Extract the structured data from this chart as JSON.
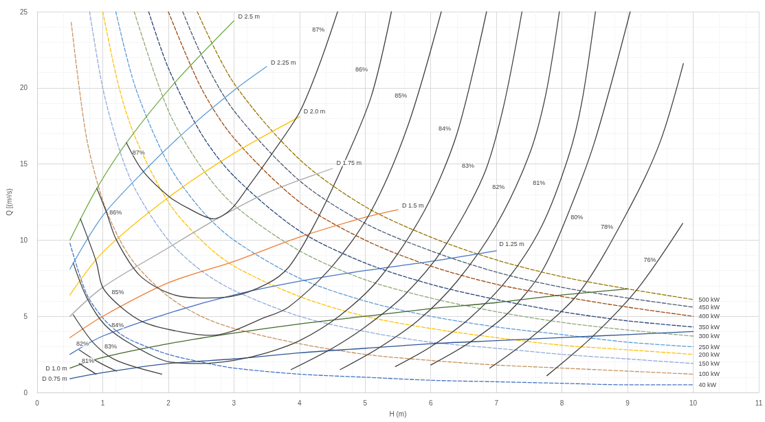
{
  "chart_data": {
    "type": "line",
    "xlabel": "H (m)",
    "ylabel": "Q [(m³/s)",
    "xlim": [
      0,
      11
    ],
    "xticks": [
      0,
      1,
      2,
      3,
      4,
      5,
      6,
      7,
      8,
      9,
      10,
      11
    ],
    "ylim": [
      0,
      25
    ],
    "yticks": [
      0,
      5,
      10,
      15,
      20,
      25
    ],
    "grid": true,
    "marker": "none",
    "line_style": "solid",
    "series": [
      {
        "name": "D 2.5 m",
        "color": "#70ad47",
        "x": [
          0.5,
          0.91,
          1.38,
          2.09,
          3
        ],
        "values": [
          10,
          13.4,
          16.5,
          20.3,
          24.4
        ]
      },
      {
        "name": "D 2.25 m",
        "color": "#5b9bd5",
        "x": [
          0.5,
          1,
          1.62,
          2.3,
          3.02,
          3.5
        ],
        "values": [
          8.1,
          11.6,
          14.5,
          17.3,
          19.9,
          21.4
        ]
      },
      {
        "name": "D 2.0 m",
        "color": "#ffc000",
        "x": [
          0.5,
          1,
          2,
          3,
          4
        ],
        "values": [
          6.4,
          9.2,
          12.8,
          15.7,
          18.1
        ]
      },
      {
        "name": "D 1.75 m",
        "color": "#a5a5a5",
        "x": [
          0.5,
          1,
          2,
          2.7,
          3.5,
          4.5
        ],
        "values": [
          5.0,
          6.9,
          9.5,
          11.3,
          13.1,
          14.7
        ]
      },
      {
        "name": "D 1.5 m",
        "color": "#ed7d31",
        "x": [
          0.5,
          1,
          2,
          3,
          4,
          5,
          5.5
        ],
        "values": [
          3.6,
          5.0,
          7.2,
          8.6,
          10.2,
          11.5,
          12.0
        ]
      },
      {
        "name": "D 1.25 m",
        "color": "#4472c4",
        "x": [
          0.5,
          1,
          2,
          3,
          4,
          5,
          6,
          7
        ],
        "values": [
          2.5,
          3.7,
          5.2,
          6.4,
          7.3,
          8.0,
          8.6,
          9.3
        ]
      },
      {
        "name": "D 1.0 m",
        "color": "#43682b",
        "x": [
          0.5,
          1,
          2,
          3,
          4,
          5,
          6,
          7,
          8,
          9
        ],
        "values": [
          1.6,
          2.3,
          3.2,
          3.9,
          4.5,
          5.0,
          5.5,
          5.9,
          6.4,
          6.8
        ]
      },
      {
        "name": "D 0.75 m",
        "color": "#2f5597",
        "x": [
          0.5,
          1,
          2,
          3,
          4,
          5,
          6,
          7,
          8,
          9,
          10
        ],
        "values": [
          0.9,
          1.3,
          1.9,
          2.2,
          2.6,
          2.9,
          3.2,
          3.4,
          3.6,
          3.8,
          4.0
        ]
      },
      {
        "name": "40 kW",
        "color": "#4472c4",
        "line_style": "dashed",
        "x": [
          0.5,
          0.75,
          1,
          1.25,
          1.5,
          2,
          2.5,
          3,
          4,
          5,
          6,
          7,
          8,
          9,
          10
        ],
        "values": [
          9.8,
          6.5,
          4.9,
          3.9,
          3.3,
          2.5,
          2.0,
          1.6,
          1.2,
          1.0,
          0.8,
          0.7,
          0.6,
          0.5,
          0.5
        ]
      },
      {
        "name": "100 kW",
        "color": "#c9915c",
        "line_style": "dashed",
        "x": [
          0.52,
          0.75,
          1,
          1.25,
          1.5,
          2,
          2.5,
          3,
          4,
          5,
          6,
          7,
          8,
          9,
          10
        ],
        "values": [
          24.3,
          16.8,
          12.6,
          10.1,
          8.4,
          6.3,
          5.0,
          4.2,
          3.2,
          2.5,
          2.1,
          1.8,
          1.6,
          1.4,
          1.2
        ]
      },
      {
        "name": "150 kW",
        "color": "#8faadc",
        "line_style": "dashed",
        "x": [
          0.8,
          1,
          1.25,
          1.5,
          2,
          2.5,
          3,
          4,
          5,
          6,
          7,
          8,
          9,
          10
        ],
        "values": [
          25,
          20,
          16,
          13.3,
          10,
          8,
          6.7,
          5,
          4,
          3.3,
          2.9,
          2.5,
          2.2,
          1.9
        ]
      },
      {
        "name": "200 kW",
        "color": "#ffc000",
        "line_style": "dashed",
        "x": [
          1,
          1.25,
          1.5,
          2,
          2.5,
          3,
          4,
          5,
          6,
          7,
          8,
          9,
          10
        ],
        "values": [
          25,
          20,
          16.7,
          12.5,
          10,
          8.3,
          6.3,
          5,
          4.2,
          3.6,
          3.1,
          2.8,
          2.5
        ]
      },
      {
        "name": "250 kW",
        "color": "#5b9bd5",
        "line_style": "dashed",
        "x": [
          1.2,
          1.5,
          2,
          2.5,
          3,
          4,
          5,
          6,
          7,
          8,
          9,
          10
        ],
        "values": [
          25,
          20,
          15,
          12,
          10,
          7.5,
          6,
          5,
          4.3,
          3.8,
          3.3,
          3.0
        ]
      },
      {
        "name": "300 kW",
        "color": "#8fa876",
        "line_style": "dashed",
        "x": [
          1.48,
          2,
          2.5,
          3,
          4,
          5,
          6,
          7,
          8,
          9,
          10
        ],
        "values": [
          25,
          18.5,
          14.8,
          12.3,
          9.3,
          7.4,
          6.2,
          5.3,
          4.6,
          4.1,
          3.7
        ]
      },
      {
        "name": "350 kW",
        "color": "#264478",
        "line_style": "dashed",
        "x": [
          1.7,
          2,
          2.5,
          3,
          4,
          5,
          6,
          7,
          8,
          9,
          10
        ],
        "values": [
          25,
          21.3,
          17,
          14.2,
          10.6,
          8.5,
          7.1,
          6.1,
          5.3,
          4.7,
          4.3
        ]
      },
      {
        "name": "400 kW",
        "color": "#9e480e",
        "line_style": "dashed",
        "x": [
          2,
          2.5,
          3,
          4,
          5,
          6,
          7,
          8,
          9,
          10
        ],
        "values": [
          25,
          20,
          16.7,
          12.5,
          10,
          8.3,
          7.1,
          6.3,
          5.6,
          5.0
        ]
      },
      {
        "name": "450 kW",
        "color": "#4a5a70",
        "line_style": "dashed",
        "x": [
          2.22,
          2.5,
          3,
          4,
          5,
          6,
          7,
          8,
          9,
          10
        ],
        "values": [
          25,
          22.2,
          18.5,
          13.9,
          11.1,
          9.3,
          7.9,
          6.9,
          6.2,
          5.6
        ]
      },
      {
        "name": "500 kW",
        "color": "#997300",
        "line_style": "dashed",
        "x": [
          2.44,
          3,
          4,
          5,
          6,
          7,
          8,
          9,
          10
        ],
        "values": [
          25,
          20.3,
          15.3,
          12.2,
          10.2,
          8.7,
          7.6,
          6.8,
          6.1
        ]
      },
      {
        "name": "87%",
        "color": "#404040",
        "x": [
          1.36,
          1.6,
          2,
          2.3,
          2.69,
          2.95,
          3.2,
          3.6,
          4,
          4.3,
          4.58
        ],
        "values": [
          16.4,
          14.6,
          12.9,
          12.1,
          11.4,
          12,
          13.4,
          15.8,
          18.4,
          21.5,
          25
        ]
      },
      {
        "name": "86%",
        "color": "#404040",
        "x": [
          0.91,
          1.05,
          1.21,
          1.56,
          2.02,
          2.5,
          2.96,
          3.49,
          3.83,
          4.2,
          4.65,
          5.09,
          5.4
        ],
        "values": [
          13.4,
          11.9,
          10.0,
          7.7,
          6.5,
          6.2,
          6.3,
          7.1,
          8.2,
          10.8,
          14.8,
          19.4,
          25
        ]
      },
      {
        "name": "85%",
        "color": "#404040",
        "x": [
          0.66,
          0.9,
          1.0,
          1.28,
          1.63,
          2.16,
          2.65,
          2.96,
          3.4,
          3.83,
          4.5,
          5.09,
          5.65,
          6.16
        ],
        "values": [
          11.4,
          8.6,
          6.9,
          5.6,
          4.6,
          4.0,
          3.75,
          4.0,
          4.8,
          5.6,
          8.3,
          11.9,
          17.5,
          25
        ]
      },
      {
        "name": "84%",
        "color": "#404040",
        "x": [
          0.55,
          0.76,
          1.04,
          1.46,
          2.02,
          2.5,
          3,
          3.5,
          4,
          4.6,
          5.2,
          5.9,
          6.4,
          6.85
        ],
        "values": [
          8.5,
          6.2,
          4.4,
          3.1,
          2.0,
          1.9,
          2.1,
          2.6,
          3.4,
          5.0,
          7.4,
          11.9,
          17.0,
          25
        ]
      },
      {
        "name": "83%",
        "color": "#404040",
        "x": [
          0.55,
          0.87,
          1.21,
          1.9
        ],
        "values": [
          5.1,
          3.2,
          2.1,
          1.2
        ]
      },
      {
        "name": "83%",
        "color": "#404040",
        "x": [
          3.87,
          4.5,
          5,
          5.6,
          6.2,
          6.8,
          7.1,
          7.39
        ],
        "values": [
          1.5,
          2.9,
          4.3,
          6.4,
          9.5,
          14.2,
          18.6,
          25
        ]
      },
      {
        "name": "82%",
        "color": "#404040",
        "x": [
          0.64,
          0.93,
          1.21
        ],
        "values": [
          2.8,
          2.0,
          1.4
        ]
      },
      {
        "name": "82%",
        "color": "#404040",
        "x": [
          4.62,
          5.2,
          5.8,
          6.4,
          7,
          7.5,
          7.75,
          7.96
        ],
        "values": [
          1.5,
          2.9,
          4.7,
          7.3,
          11.0,
          15.6,
          19.5,
          25
        ]
      },
      {
        "name": "81%",
        "color": "#404040",
        "x": [
          0.64,
          0.9
        ],
        "values": [
          1.9,
          1.2
        ]
      },
      {
        "name": "81%",
        "color": "#404040",
        "x": [
          5.46,
          6,
          6.6,
          7.2,
          7.7,
          8.1,
          8.3,
          8.51
        ],
        "values": [
          1.7,
          3.0,
          4.9,
          7.6,
          11.0,
          15.5,
          19,
          25
        ]
      },
      {
        "name": "80%",
        "color": "#404040",
        "x": [
          6.0,
          6.6,
          7.2,
          7.7,
          8.08,
          8.5,
          9.04
        ],
        "values": [
          1.8,
          3.3,
          5.3,
          8.0,
          11.6,
          16.5,
          25
        ]
      },
      {
        "name": "78%",
        "color": "#404040",
        "x": [
          6.9,
          7.5,
          8.27,
          9.04,
          9.5,
          9.85
        ],
        "values": [
          1.6,
          3.5,
          6.6,
          12.2,
          16.5,
          21.6
        ]
      },
      {
        "name": "76%",
        "color": "#404040",
        "x": [
          7.77,
          8.46,
          9.15,
          9.84
        ],
        "values": [
          1.1,
          3.65,
          6.8,
          11.1
        ]
      }
    ]
  }
}
